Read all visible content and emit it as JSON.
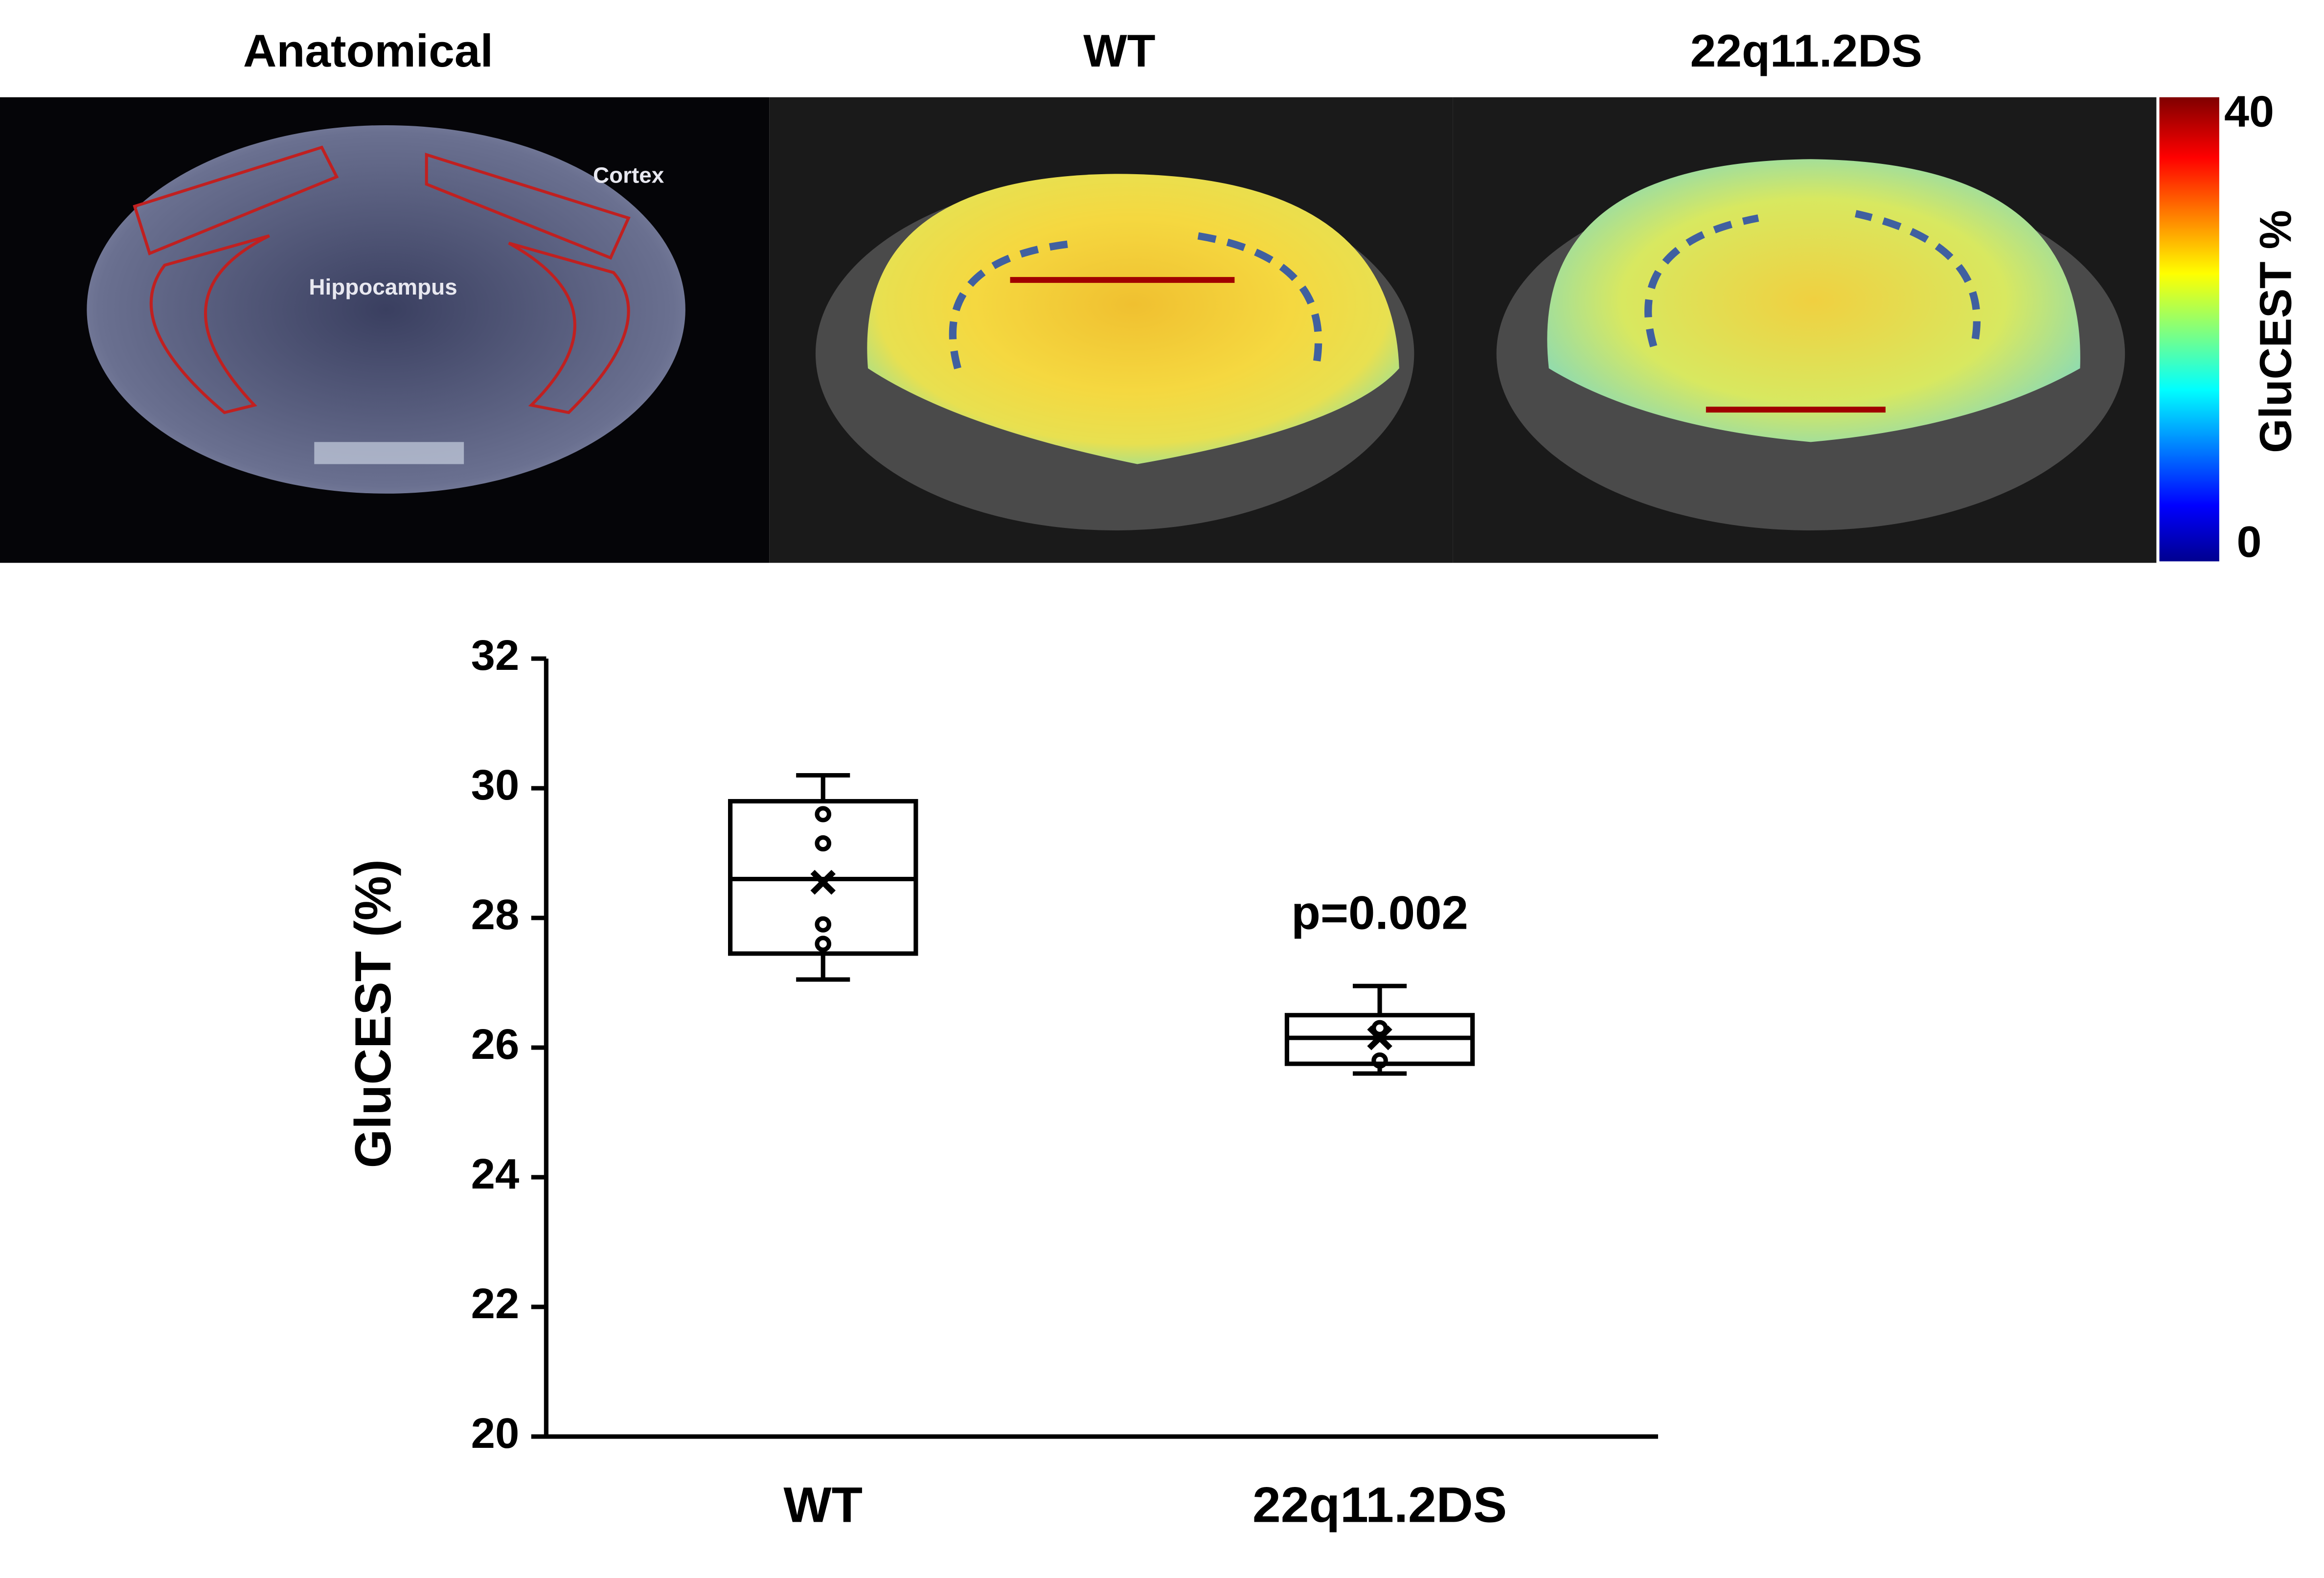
{
  "images": {
    "titles": [
      "Anatomical",
      "WT",
      "22q11.2DS"
    ],
    "region_labels": [
      "Cortex",
      "Hippocampus"
    ]
  },
  "colorbar": {
    "label": "GluCEST %",
    "lim": [
      0,
      40
    ],
    "ticks": [
      0,
      40
    ]
  },
  "chart_data": {
    "type": "box",
    "ylabel": "GluCEST (%)",
    "categories": [
      "WT",
      "22q11.2DS"
    ],
    "boxes": [
      {
        "min": 27.05,
        "q1": 27.45,
        "median": 28.6,
        "q3": 29.8,
        "max": 30.2,
        "mean": 28.55,
        "points": [
          29.6,
          29.15,
          27.9,
          27.6
        ]
      },
      {
        "min": 25.6,
        "q1": 25.75,
        "median": 26.15,
        "q3": 26.5,
        "max": 26.95,
        "mean": 26.15,
        "points": [
          26.3,
          25.8
        ]
      }
    ],
    "annotation": "p=0.002",
    "ylim": [
      20,
      32
    ],
    "yticks": [
      20,
      22,
      24,
      26,
      28,
      30,
      32
    ]
  }
}
